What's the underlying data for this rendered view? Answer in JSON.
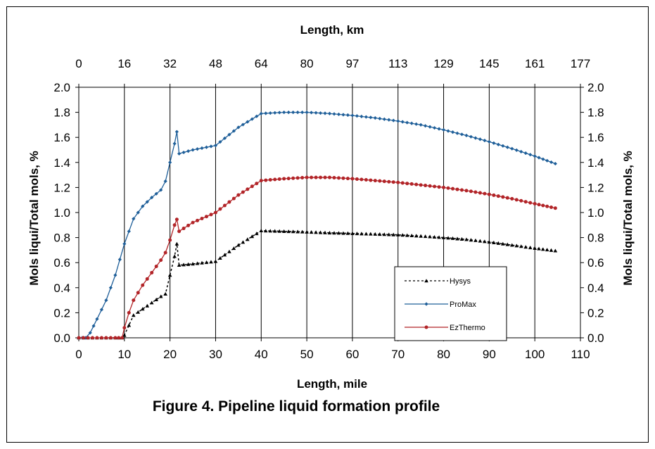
{
  "chart_data": {
    "type": "line",
    "caption": "Figure 4. Pipeline liquid formation profile",
    "xlabel": "Length, mile",
    "x2label": "Length, km",
    "ylabel": "Mols liqui/Total mols, %",
    "y2label": "Mols liqui/Total mols, %",
    "xlim": [
      0,
      110
    ],
    "ylim": [
      0,
      2.0
    ],
    "x_ticks": [
      "0",
      "10",
      "20",
      "30",
      "40",
      "50",
      "60",
      "70",
      "80",
      "90",
      "100",
      "110"
    ],
    "x2_ticks": [
      "0",
      "16",
      "32",
      "48",
      "64",
      "80",
      "97",
      "113",
      "129",
      "145",
      "161",
      "177"
    ],
    "y_ticks": [
      "0.0",
      "0.2",
      "0.4",
      "0.6",
      "0.8",
      "1.0",
      "1.2",
      "1.4",
      "1.6",
      "1.8",
      "2.0"
    ],
    "grid": {
      "x": true,
      "y": false
    },
    "legend_position": "lower-right",
    "series": [
      {
        "name": "Hysys",
        "color": "#000000",
        "marker": "triangle",
        "dash": "dotted",
        "points": [
          [
            0,
            0
          ],
          [
            4,
            0
          ],
          [
            8,
            0
          ],
          [
            9.5,
            0
          ],
          [
            10,
            0.02
          ],
          [
            11,
            0.1
          ],
          [
            12,
            0.18
          ],
          [
            14,
            0.23
          ],
          [
            16,
            0.28
          ],
          [
            18,
            0.33
          ],
          [
            19,
            0.35
          ],
          [
            20,
            0.5
          ],
          [
            21,
            0.65
          ],
          [
            21.5,
            0.75
          ],
          [
            22,
            0.58
          ],
          [
            25,
            0.59
          ],
          [
            30,
            0.61
          ],
          [
            35,
            0.74
          ],
          [
            40,
            0.855
          ],
          [
            45,
            0.85
          ],
          [
            50,
            0.845
          ],
          [
            55,
            0.838
          ],
          [
            60,
            0.833
          ],
          [
            65,
            0.828
          ],
          [
            70,
            0.822
          ],
          [
            75,
            0.812
          ],
          [
            80,
            0.8
          ],
          [
            85,
            0.785
          ],
          [
            90,
            0.765
          ],
          [
            95,
            0.74
          ],
          [
            100,
            0.715
          ],
          [
            104.5,
            0.695
          ]
        ]
      },
      {
        "name": "ProMax",
        "color": "#1f5f99",
        "marker": "diamond",
        "dash": "solid",
        "points": [
          [
            0,
            0
          ],
          [
            1.5,
            0
          ],
          [
            2.5,
            0.04
          ],
          [
            4,
            0.15
          ],
          [
            6,
            0.3
          ],
          [
            8,
            0.5
          ],
          [
            10,
            0.75
          ],
          [
            12,
            0.95
          ],
          [
            14,
            1.05
          ],
          [
            16,
            1.12
          ],
          [
            18,
            1.18
          ],
          [
            19,
            1.25
          ],
          [
            20,
            1.4
          ],
          [
            21,
            1.55
          ],
          [
            21.5,
            1.645
          ],
          [
            22,
            1.47
          ],
          [
            25,
            1.5
          ],
          [
            30,
            1.535
          ],
          [
            35,
            1.68
          ],
          [
            40,
            1.79
          ],
          [
            45,
            1.8
          ],
          [
            50,
            1.8
          ],
          [
            55,
            1.79
          ],
          [
            60,
            1.775
          ],
          [
            65,
            1.755
          ],
          [
            70,
            1.73
          ],
          [
            75,
            1.7
          ],
          [
            80,
            1.66
          ],
          [
            85,
            1.615
          ],
          [
            90,
            1.565
          ],
          [
            95,
            1.51
          ],
          [
            100,
            1.45
          ],
          [
            104.5,
            1.39
          ]
        ]
      },
      {
        "name": "EzThermo",
        "color": "#b22428",
        "marker": "circle",
        "dash": "solid",
        "points": [
          [
            0,
            0
          ],
          [
            4,
            0
          ],
          [
            8,
            0
          ],
          [
            9.5,
            0
          ],
          [
            10,
            0.08
          ],
          [
            11,
            0.2
          ],
          [
            12,
            0.3
          ],
          [
            14,
            0.42
          ],
          [
            16,
            0.52
          ],
          [
            18,
            0.62
          ],
          [
            19,
            0.68
          ],
          [
            20,
            0.78
          ],
          [
            21,
            0.9
          ],
          [
            21.5,
            0.945
          ],
          [
            22,
            0.85
          ],
          [
            25,
            0.92
          ],
          [
            30,
            1.0
          ],
          [
            35,
            1.14
          ],
          [
            40,
            1.255
          ],
          [
            45,
            1.27
          ],
          [
            50,
            1.28
          ],
          [
            55,
            1.28
          ],
          [
            60,
            1.27
          ],
          [
            65,
            1.255
          ],
          [
            70,
            1.24
          ],
          [
            75,
            1.22
          ],
          [
            80,
            1.2
          ],
          [
            85,
            1.175
          ],
          [
            90,
            1.145
          ],
          [
            95,
            1.11
          ],
          [
            100,
            1.07
          ],
          [
            104.5,
            1.035
          ]
        ]
      }
    ]
  }
}
